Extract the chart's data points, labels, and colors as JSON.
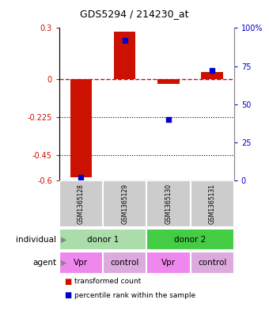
{
  "title": "GDS5294 / 214230_at",
  "samples": [
    "GSM1365128",
    "GSM1365129",
    "GSM1365130",
    "GSM1365131"
  ],
  "red_values": [
    -0.58,
    0.28,
    -0.03,
    0.04
  ],
  "blue_values_pct": [
    2,
    92,
    40,
    72
  ],
  "ylim_left": [
    -0.6,
    0.3
  ],
  "ylim_right": [
    0,
    100
  ],
  "yticks_left": [
    0.3,
    0,
    -0.225,
    -0.45,
    -0.6
  ],
  "yticks_right": [
    100,
    75,
    50,
    25,
    0
  ],
  "red_color": "#cc1100",
  "blue_color": "#0000cc",
  "bar_width": 0.5,
  "agent_labels": [
    "Vpr",
    "control",
    "Vpr",
    "control"
  ],
  "legend_red": "transformed count",
  "legend_blue": "percentile rank within the sample",
  "label_individual": "individual",
  "label_agent": "agent",
  "gray_color": "#cccccc",
  "pink_vpr": "#ee88ee",
  "pink_ctrl": "#ddaadd",
  "green1_color": "#aaddaa",
  "green2_color": "#44cc44",
  "donor1_label": "donor 1",
  "donor2_label": "donor 2"
}
